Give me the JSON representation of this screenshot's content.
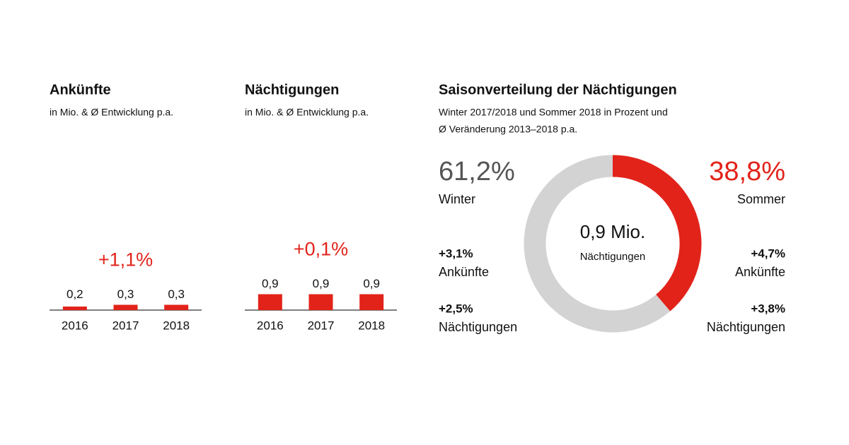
{
  "chart_data": [
    {
      "type": "bar",
      "title": "Ankünfte",
      "subtitle": "in Mio. & Ø Entwicklung p.a.",
      "categories": [
        "2016",
        "2017",
        "2018"
      ],
      "values": [
        0.2,
        0.3,
        0.3
      ],
      "value_labels": [
        "0,2",
        "0,3",
        "0,3"
      ],
      "annotation": "+1,1%",
      "color": "#e2231a",
      "ylim": [
        0,
        1
      ]
    },
    {
      "type": "bar",
      "title": "Nächtigungen",
      "subtitle": "in Mio. & Ø Entwicklung p.a.",
      "categories": [
        "2016",
        "2017",
        "2018"
      ],
      "values": [
        0.9,
        0.9,
        0.9
      ],
      "value_labels": [
        "0,9",
        "0,9",
        "0,9"
      ],
      "annotation": "+0,1%",
      "color": "#e2231a",
      "ylim": [
        0,
        1
      ]
    },
    {
      "type": "pie",
      "title": "Saisonverteilung der Nächtigungen",
      "subtitle": [
        "Winter 2017/2018 und Sommer 2018 in Prozent und",
        "Ø Veränderung 2013–2018 p.a."
      ],
      "categories": [
        "Winter",
        "Sommer"
      ],
      "values": [
        61.2,
        38.8
      ],
      "value_labels": [
        "61,2%",
        "38,8%"
      ],
      "colors": [
        "#d3d3d3",
        "#e2231a"
      ],
      "label_colors": [
        "#555555",
        "#e2231a"
      ],
      "center": {
        "value": "0,9 Mio.",
        "label": "Nächtigungen"
      },
      "details": [
        [
          {
            "value": "+3,1%",
            "label": "Ankünfte"
          },
          {
            "value": "+2,5%",
            "label": "Nächtigungen"
          }
        ],
        [
          {
            "value": "+4,7%",
            "label": "Ankünfte"
          },
          {
            "value": "+3,8%",
            "label": "Nächtigungen"
          }
        ]
      ]
    }
  ]
}
